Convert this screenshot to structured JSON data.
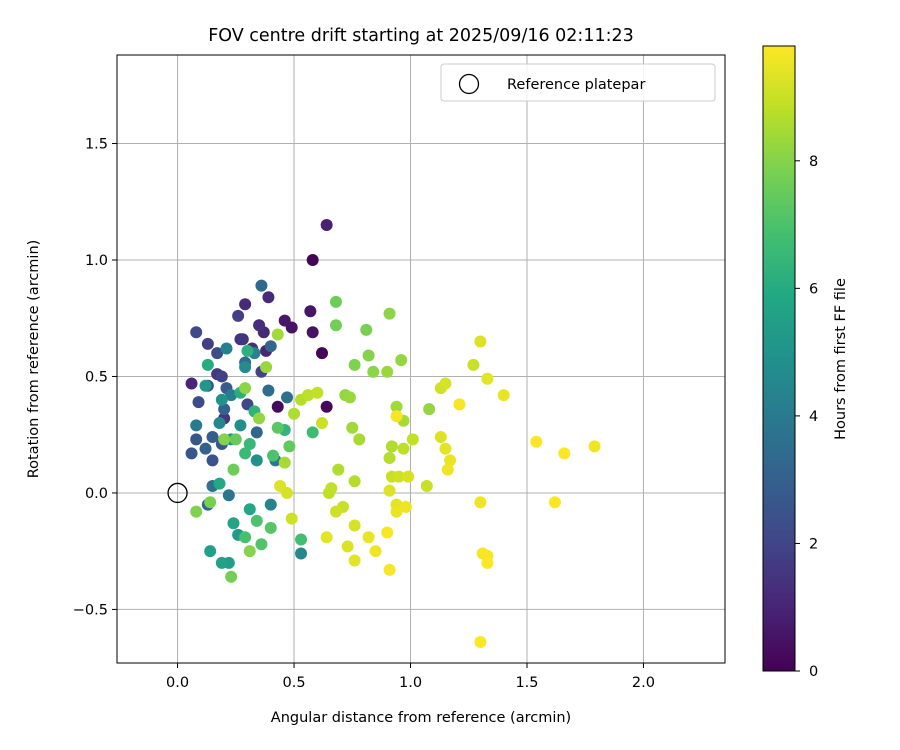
{
  "chart_data": {
    "type": "scatter",
    "title": "FOV centre drift starting at 2025/09/16 02:11:23",
    "xlabel": "Angular distance from reference (arcmin)",
    "ylabel": "Rotation from reference (arcmin)",
    "xlim": [
      -0.26,
      2.35
    ],
    "ylim": [
      -0.73,
      1.88
    ],
    "xticks": [
      0.0,
      0.5,
      1.0,
      1.5,
      2.0
    ],
    "xtick_labels": [
      "0.0",
      "0.5",
      "1.0",
      "1.5",
      "2.0"
    ],
    "yticks": [
      -0.5,
      0.0,
      0.5,
      1.0,
      1.5
    ],
    "ytick_labels": [
      "−0.5",
      "0.0",
      "0.5",
      "1.0",
      "1.5"
    ],
    "grid": true,
    "legend": {
      "placement": "top-right",
      "entries": [
        "Reference platepar"
      ]
    },
    "reference_point": {
      "x": 0.0,
      "y": 0.0,
      "label": "Reference platepar"
    },
    "colorbar": {
      "label": "Hours from first FF file",
      "range": [
        0,
        9.8
      ],
      "ticks": [
        0,
        2,
        4,
        6,
        8
      ],
      "tick_labels": [
        "0",
        "2",
        "4",
        "6",
        "8"
      ],
      "colormap": "viridis"
    },
    "series": [
      {
        "name": "FOV centre",
        "points": [
          {
            "x": 0.58,
            "y": 1.0,
            "c": 0.1
          },
          {
            "x": 0.62,
            "y": 0.6,
            "c": 0.1
          },
          {
            "x": 0.64,
            "y": 0.37,
            "c": 0.2
          },
          {
            "x": 0.43,
            "y": 0.37,
            "c": 0.3
          },
          {
            "x": 0.58,
            "y": 0.69,
            "c": 0.5
          },
          {
            "x": 0.49,
            "y": 0.71,
            "c": 0.5
          },
          {
            "x": 0.46,
            "y": 0.74,
            "c": 0.6
          },
          {
            "x": 0.57,
            "y": 0.78,
            "c": 0.6
          },
          {
            "x": 0.64,
            "y": 1.15,
            "c": 0.9
          },
          {
            "x": 0.06,
            "y": 0.47,
            "c": 1.0
          },
          {
            "x": 0.38,
            "y": 0.61,
            "c": 1.0
          },
          {
            "x": 0.37,
            "y": 0.69,
            "c": 1.1
          },
          {
            "x": 0.29,
            "y": 0.81,
            "c": 1.2
          },
          {
            "x": 0.39,
            "y": 0.84,
            "c": 1.2
          },
          {
            "x": 0.35,
            "y": 0.72,
            "c": 1.3
          },
          {
            "x": 0.32,
            "y": 0.62,
            "c": 1.3
          },
          {
            "x": 0.27,
            "y": 0.66,
            "c": 1.4
          },
          {
            "x": 0.28,
            "y": 0.66,
            "c": 1.5
          },
          {
            "x": 0.2,
            "y": 0.32,
            "c": 1.5
          },
          {
            "x": 0.17,
            "y": 0.51,
            "c": 1.6
          },
          {
            "x": 0.26,
            "y": 0.76,
            "c": 1.8
          },
          {
            "x": 0.13,
            "y": 0.64,
            "c": 1.8
          },
          {
            "x": 0.19,
            "y": 0.5,
            "c": 1.9
          },
          {
            "x": 0.36,
            "y": 0.52,
            "c": 2.0
          },
          {
            "x": 0.3,
            "y": 0.38,
            "c": 2.1
          },
          {
            "x": 0.08,
            "y": 0.69,
            "c": 2.2
          },
          {
            "x": 0.17,
            "y": 0.6,
            "c": 2.3
          },
          {
            "x": 0.09,
            "y": 0.39,
            "c": 2.3
          },
          {
            "x": 0.13,
            "y": 0.46,
            "c": 2.4
          },
          {
            "x": 0.15,
            "y": 0.14,
            "c": 2.5
          },
          {
            "x": 0.06,
            "y": 0.17,
            "c": 2.6
          },
          {
            "x": 0.08,
            "y": 0.23,
            "c": 2.6
          },
          {
            "x": 0.19,
            "y": 0.21,
            "c": 2.7
          },
          {
            "x": 0.21,
            "y": 0.45,
            "c": 2.8
          },
          {
            "x": 0.15,
            "y": 0.24,
            "c": 2.9
          },
          {
            "x": 0.12,
            "y": 0.19,
            "c": 3.0
          },
          {
            "x": 0.2,
            "y": 0.36,
            "c": 3.0
          },
          {
            "x": 0.13,
            "y": -0.05,
            "c": 3.1
          },
          {
            "x": 0.4,
            "y": 0.63,
            "c": 3.2
          },
          {
            "x": 0.34,
            "y": 0.26,
            "c": 3.2
          },
          {
            "x": 0.36,
            "y": 0.89,
            "c": 3.3
          },
          {
            "x": 0.29,
            "y": 0.56,
            "c": 3.4
          },
          {
            "x": 0.39,
            "y": 0.44,
            "c": 3.5
          },
          {
            "x": 0.47,
            "y": 0.41,
            "c": 3.6
          },
          {
            "x": 0.15,
            "y": 0.03,
            "c": 3.7
          },
          {
            "x": 0.22,
            "y": -0.01,
            "c": 3.8
          },
          {
            "x": 0.42,
            "y": 0.14,
            "c": 3.9
          },
          {
            "x": 0.08,
            "y": 0.29,
            "c": 4.0
          },
          {
            "x": 0.23,
            "y": 0.42,
            "c": 4.1
          },
          {
            "x": 0.21,
            "y": 0.62,
            "c": 4.2
          },
          {
            "x": 0.33,
            "y": 0.6,
            "c": 4.3
          },
          {
            "x": 0.4,
            "y": -0.05,
            "c": 4.4
          },
          {
            "x": 0.18,
            "y": 0.3,
            "c": 4.5
          },
          {
            "x": 0.53,
            "y": -0.26,
            "c": 4.6
          },
          {
            "x": 0.29,
            "y": 0.54,
            "c": 4.7
          },
          {
            "x": 0.27,
            "y": 0.29,
            "c": 4.8
          },
          {
            "x": 0.34,
            "y": 0.14,
            "c": 4.9
          },
          {
            "x": 0.19,
            "y": 0.4,
            "c": 5.0
          },
          {
            "x": 0.12,
            "y": 0.46,
            "c": 5.1
          },
          {
            "x": 0.23,
            "y": 0.23,
            "c": 5.2
          },
          {
            "x": 0.26,
            "y": -0.18,
            "c": 5.3
          },
          {
            "x": 0.22,
            "y": -0.3,
            "c": 5.4
          },
          {
            "x": 0.14,
            "y": -0.25,
            "c": 5.5
          },
          {
            "x": 0.19,
            "y": -0.3,
            "c": 5.6
          },
          {
            "x": 0.24,
            "y": -0.13,
            "c": 5.7
          },
          {
            "x": 0.31,
            "y": -0.07,
            "c": 5.8
          },
          {
            "x": 0.18,
            "y": 0.04,
            "c": 5.9
          },
          {
            "x": 0.13,
            "y": 0.55,
            "c": 6.0
          },
          {
            "x": 0.27,
            "y": 0.43,
            "c": 6.1
          },
          {
            "x": 0.3,
            "y": 0.61,
            "c": 6.2
          },
          {
            "x": 0.33,
            "y": 0.35,
            "c": 6.3
          },
          {
            "x": 0.46,
            "y": 0.27,
            "c": 6.4
          },
          {
            "x": 0.31,
            "y": 0.21,
            "c": 6.5
          },
          {
            "x": 0.29,
            "y": 0.17,
            "c": 6.6
          },
          {
            "x": 0.58,
            "y": 0.26,
            "c": 6.7
          },
          {
            "x": 0.53,
            "y": -0.2,
            "c": 6.8
          },
          {
            "x": 0.29,
            "y": -0.19,
            "c": 6.9
          },
          {
            "x": 0.34,
            "y": -0.12,
            "c": 7.0
          },
          {
            "x": 0.41,
            "y": 0.16,
            "c": 7.0
          },
          {
            "x": 0.36,
            "y": -0.22,
            "c": 7.1
          },
          {
            "x": 0.4,
            "y": -0.15,
            "c": 7.2
          },
          {
            "x": 0.43,
            "y": 0.28,
            "c": 7.3
          },
          {
            "x": 0.48,
            "y": 0.2,
            "c": 7.4
          },
          {
            "x": 0.25,
            "y": 0.23,
            "c": 7.5
          },
          {
            "x": 0.24,
            "y": 0.1,
            "c": 7.6
          },
          {
            "x": 0.23,
            "y": -0.36,
            "c": 7.7
          },
          {
            "x": 0.14,
            "y": -0.04,
            "c": 7.8
          },
          {
            "x": 0.08,
            "y": -0.08,
            "c": 7.9
          },
          {
            "x": 0.31,
            "y": -0.25,
            "c": 8.0
          },
          {
            "x": 0.2,
            "y": 0.23,
            "c": 8.0
          },
          {
            "x": 0.29,
            "y": 0.45,
            "c": 8.1
          },
          {
            "x": 0.35,
            "y": 0.32,
            "c": 8.2
          },
          {
            "x": 0.38,
            "y": 0.54,
            "c": 8.3
          },
          {
            "x": 0.43,
            "y": 0.68,
            "c": 8.4
          },
          {
            "x": 0.46,
            "y": 0.13,
            "c": 8.5
          },
          {
            "x": 0.5,
            "y": 0.34,
            "c": 8.6
          },
          {
            "x": 0.53,
            "y": 0.4,
            "c": 8.7
          },
          {
            "x": 0.56,
            "y": 0.42,
            "c": 8.8
          },
          {
            "x": 0.6,
            "y": 0.43,
            "c": 8.9
          },
          {
            "x": 0.62,
            "y": 0.3,
            "c": 9.0
          },
          {
            "x": 0.49,
            "y": -0.11,
            "c": 9.1
          },
          {
            "x": 0.47,
            "y": 0.0,
            "c": 9.2
          },
          {
            "x": 0.44,
            "y": 0.03,
            "c": 9.3
          },
          {
            "x": 0.64,
            "y": -0.19,
            "c": 9.4
          },
          {
            "x": 0.68,
            "y": 0.82,
            "c": 7.6
          },
          {
            "x": 0.68,
            "y": 0.72,
            "c": 7.7
          },
          {
            "x": 0.81,
            "y": 0.7,
            "c": 7.8
          },
          {
            "x": 0.76,
            "y": 0.55,
            "c": 7.9
          },
          {
            "x": 0.82,
            "y": 0.59,
            "c": 8.0
          },
          {
            "x": 0.84,
            "y": 0.52,
            "c": 8.1
          },
          {
            "x": 0.72,
            "y": 0.42,
            "c": 8.2
          },
          {
            "x": 0.74,
            "y": 0.41,
            "c": 8.3
          },
          {
            "x": 0.75,
            "y": 0.28,
            "c": 8.4
          },
          {
            "x": 0.78,
            "y": 0.23,
            "c": 8.5
          },
          {
            "x": 0.69,
            "y": 0.1,
            "c": 8.6
          },
          {
            "x": 0.76,
            "y": 0.05,
            "c": 8.7
          },
          {
            "x": 0.65,
            "y": 0.0,
            "c": 8.8
          },
          {
            "x": 0.66,
            "y": 0.02,
            "c": 8.9
          },
          {
            "x": 0.71,
            "y": -0.06,
            "c": 9.0
          },
          {
            "x": 0.68,
            "y": -0.08,
            "c": 9.1
          },
          {
            "x": 0.76,
            "y": -0.14,
            "c": 9.2
          },
          {
            "x": 0.73,
            "y": -0.23,
            "c": 9.3
          },
          {
            "x": 0.76,
            "y": -0.29,
            "c": 9.4
          },
          {
            "x": 0.82,
            "y": -0.19,
            "c": 9.5
          },
          {
            "x": 0.85,
            "y": -0.25,
            "c": 9.6
          },
          {
            "x": 0.9,
            "y": -0.17,
            "c": 9.7
          },
          {
            "x": 0.91,
            "y": -0.33,
            "c": 9.7
          },
          {
            "x": 0.91,
            "y": 0.77,
            "c": 8.1
          },
          {
            "x": 0.96,
            "y": 0.57,
            "c": 8.2
          },
          {
            "x": 0.9,
            "y": 0.52,
            "c": 8.3
          },
          {
            "x": 0.94,
            "y": 0.37,
            "c": 8.4
          },
          {
            "x": 0.97,
            "y": 0.31,
            "c": 8.5
          },
          {
            "x": 0.92,
            "y": 0.2,
            "c": 8.6
          },
          {
            "x": 0.91,
            "y": 0.15,
            "c": 8.7
          },
          {
            "x": 0.97,
            "y": 0.19,
            "c": 8.8
          },
          {
            "x": 1.01,
            "y": 0.23,
            "c": 8.9
          },
          {
            "x": 0.92,
            "y": 0.07,
            "c": 9.0
          },
          {
            "x": 0.95,
            "y": 0.07,
            "c": 9.1
          },
          {
            "x": 0.99,
            "y": 0.07,
            "c": 9.2
          },
          {
            "x": 0.91,
            "y": 0.01,
            "c": 9.3
          },
          {
            "x": 0.94,
            "y": -0.05,
            "c": 9.4
          },
          {
            "x": 0.94,
            "y": -0.08,
            "c": 9.5
          },
          {
            "x": 0.98,
            "y": -0.06,
            "c": 9.6
          },
          {
            "x": 0.94,
            "y": 0.33,
            "c": 9.7
          },
          {
            "x": 1.08,
            "y": 0.36,
            "c": 8.2
          },
          {
            "x": 1.07,
            "y": 0.03,
            "c": 9.0
          },
          {
            "x": 1.13,
            "y": 0.45,
            "c": 9.1
          },
          {
            "x": 1.15,
            "y": 0.47,
            "c": 9.2
          },
          {
            "x": 1.13,
            "y": 0.24,
            "c": 9.3
          },
          {
            "x": 1.15,
            "y": 0.19,
            "c": 9.4
          },
          {
            "x": 1.17,
            "y": 0.14,
            "c": 9.5
          },
          {
            "x": 1.16,
            "y": 0.1,
            "c": 9.6
          },
          {
            "x": 1.21,
            "y": 0.38,
            "c": 9.7
          },
          {
            "x": 1.27,
            "y": 0.55,
            "c": 9.0
          },
          {
            "x": 1.3,
            "y": 0.65,
            "c": 9.3
          },
          {
            "x": 1.33,
            "y": 0.49,
            "c": 9.4
          },
          {
            "x": 1.4,
            "y": 0.42,
            "c": 9.5
          },
          {
            "x": 1.3,
            "y": -0.04,
            "c": 9.6
          },
          {
            "x": 1.31,
            "y": -0.26,
            "c": 9.7
          },
          {
            "x": 1.33,
            "y": -0.27,
            "c": 9.7
          },
          {
            "x": 1.33,
            "y": -0.3,
            "c": 9.8
          },
          {
            "x": 1.3,
            "y": -0.64,
            "c": 9.8
          },
          {
            "x": 1.54,
            "y": 0.22,
            "c": 9.8
          },
          {
            "x": 1.66,
            "y": 0.17,
            "c": 9.8
          },
          {
            "x": 1.62,
            "y": -0.04,
            "c": 9.8
          },
          {
            "x": 1.79,
            "y": 0.2,
            "c": 9.6
          }
        ]
      }
    ]
  }
}
